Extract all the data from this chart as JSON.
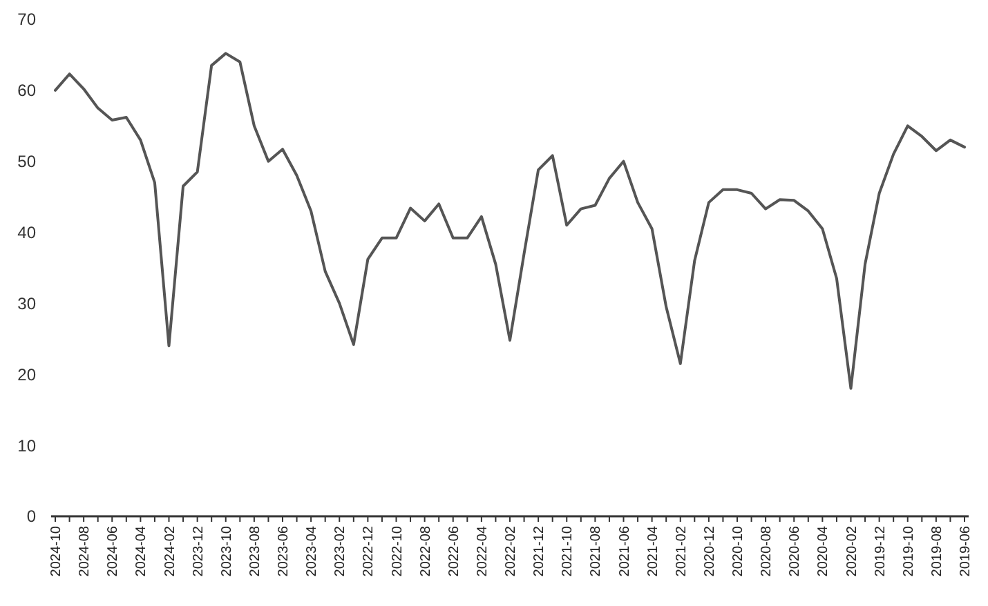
{
  "chart_data": {
    "type": "line",
    "categories": [
      "2024-10",
      null,
      "2024-08",
      null,
      "2024-06",
      null,
      "2024-04",
      null,
      "2024-02",
      null,
      "2023-12",
      null,
      "2023-10",
      null,
      "2023-08",
      null,
      "2023-06",
      null,
      "2023-04",
      null,
      "2023-02",
      null,
      "2022-12",
      null,
      "2022-10",
      null,
      "2022-08",
      null,
      "2022-06",
      null,
      "2022-04",
      null,
      "2022-02",
      null,
      "2021-12",
      null,
      "2021-10",
      null,
      "2021-08",
      null,
      "2021-06",
      null,
      "2021-04",
      null,
      "2021-02",
      null,
      "2020-12",
      null,
      "2020-10",
      null,
      "2020-08",
      null,
      "2020-06",
      null,
      "2020-04",
      null,
      "2020-02",
      null,
      "2019-12",
      null,
      "2019-10",
      null,
      "2019-08",
      null,
      "2019-06"
    ],
    "series": [
      {
        "color": "#555555",
        "values": [
          60,
          62.3,
          60.2,
          57.5,
          55.8,
          56.2,
          53,
          47,
          24,
          46.5,
          48.5,
          63.5,
          65.2,
          64,
          55,
          50,
          51.7,
          48,
          43,
          34.5,
          30,
          24.2,
          36.2,
          39.2,
          39.2,
          43.4,
          41.6,
          44,
          39.2,
          39.2,
          42.2,
          35.5,
          24.8,
          37,
          48.8,
          50.8,
          41,
          43.3,
          43.8,
          47.6,
          50,
          44.2,
          40.5,
          29.5,
          21.5,
          36,
          44.2,
          46,
          46,
          45.5,
          43.3,
          44.6,
          44.5,
          43,
          40.5,
          33.5,
          18,
          35.5,
          45.5,
          51,
          55,
          53.5,
          51.5,
          53,
          52
        ]
      }
    ],
    "ylim": [
      0,
      70
    ],
    "yticks": [
      0,
      10,
      20,
      30,
      40,
      50,
      60,
      70
    ],
    "grid": false,
    "marker": "none",
    "line_style": "solid"
  }
}
